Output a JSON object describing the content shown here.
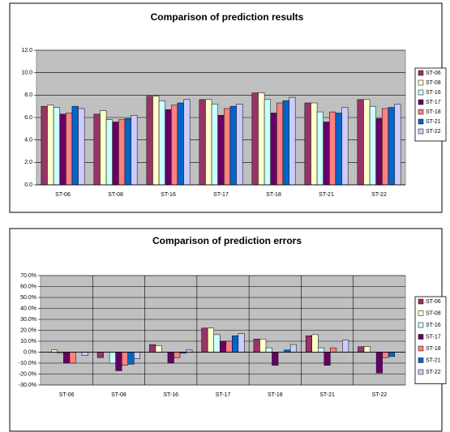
{
  "chart_data": [
    {
      "type": "bar",
      "title": "Comparison of prediction results",
      "categories": [
        "ST-06",
        "ST-08",
        "ST-16",
        "ST-17",
        "ST-18",
        "ST-21",
        "ST-22"
      ],
      "series": [
        {
          "name": "ST-06",
          "color": "#993366",
          "values": [
            7.0,
            6.3,
            7.9,
            7.6,
            8.2,
            7.3,
            7.6
          ]
        },
        {
          "name": "ST-08",
          "color": "#FFFFCC",
          "values": [
            7.1,
            6.6,
            7.9,
            7.6,
            8.2,
            7.3,
            7.6
          ]
        },
        {
          "name": "ST-16",
          "color": "#CCFFFF",
          "values": [
            6.9,
            5.8,
            7.5,
            7.2,
            7.6,
            6.5,
            7.0
          ]
        },
        {
          "name": "ST-17",
          "color": "#660066",
          "values": [
            6.3,
            5.6,
            6.7,
            6.2,
            6.4,
            5.6,
            5.9
          ]
        },
        {
          "name": "ST-18",
          "color": "#FF8080",
          "values": [
            6.4,
            5.8,
            7.1,
            6.8,
            7.3,
            6.5,
            6.8
          ]
        },
        {
          "name": "ST-21",
          "color": "#0066CC",
          "values": [
            7.0,
            5.9,
            7.3,
            7.0,
            7.5,
            6.4,
            6.9
          ]
        },
        {
          "name": "ST-22",
          "color": "#CCCCFF",
          "values": [
            6.8,
            6.2,
            7.6,
            7.2,
            7.8,
            6.9,
            7.2
          ]
        }
      ],
      "ylim": [
        0,
        12
      ],
      "yticks": [
        {
          "value": 0,
          "label": "0.0"
        },
        {
          "value": 2,
          "label": "2.0"
        },
        {
          "value": 4,
          "label": "4.0"
        },
        {
          "value": 6,
          "label": "6.0"
        },
        {
          "value": 8,
          "label": "8.0"
        },
        {
          "value": 10,
          "label": "10.0"
        },
        {
          "value": 12,
          "label": "12.0"
        }
      ],
      "grid": true,
      "xgrid": false,
      "legend": "right"
    },
    {
      "type": "bar",
      "title": "Comparison of prediction errors",
      "categories": [
        "ST-06",
        "ST-08",
        "ST-16",
        "ST-17",
        "ST-18",
        "ST-21",
        "ST-22"
      ],
      "series": [
        {
          "name": "ST-06",
          "color": "#993366",
          "values": [
            0,
            -5,
            7,
            22,
            12,
            15,
            5
          ]
        },
        {
          "name": "ST-08",
          "color": "#FFFFCC",
          "values": [
            2,
            0,
            6,
            22,
            12,
            16,
            5
          ]
        },
        {
          "name": "ST-16",
          "color": "#CCFFFF",
          "values": [
            -1,
            -10,
            0,
            16,
            4,
            4,
            0
          ]
        },
        {
          "name": "ST-17",
          "color": "#660066",
          "values": [
            -10,
            -17,
            -10,
            10,
            -12,
            -12,
            -19
          ]
        },
        {
          "name": "ST-18",
          "color": "#FF8080",
          "values": [
            -10,
            -12,
            -5,
            10,
            0,
            4,
            -5
          ]
        },
        {
          "name": "ST-21",
          "color": "#0066CC",
          "values": [
            0,
            -11,
            -1,
            15,
            2,
            0,
            -4
          ]
        },
        {
          "name": "ST-22",
          "color": "#CCCCFF",
          "values": [
            -3,
            -6,
            2,
            17,
            7,
            11,
            0
          ]
        }
      ],
      "ylim": [
        -30,
        70
      ],
      "yticks": [
        {
          "value": -30,
          "label": "-30.0%"
        },
        {
          "value": -20,
          "label": "-20.0%"
        },
        {
          "value": -10,
          "label": "-10.0%"
        },
        {
          "value": 0,
          "label": "0.0%"
        },
        {
          "value": 10,
          "label": "10.0%"
        },
        {
          "value": 20,
          "label": "20.0%"
        },
        {
          "value": 30,
          "label": "30.0%"
        },
        {
          "value": 40,
          "label": "40.0%"
        },
        {
          "value": 50,
          "label": "50.0%"
        },
        {
          "value": 60,
          "label": "60.0%"
        },
        {
          "value": 70,
          "label": "70.0%"
        }
      ],
      "grid": true,
      "xgrid": true,
      "legend": "right"
    }
  ]
}
